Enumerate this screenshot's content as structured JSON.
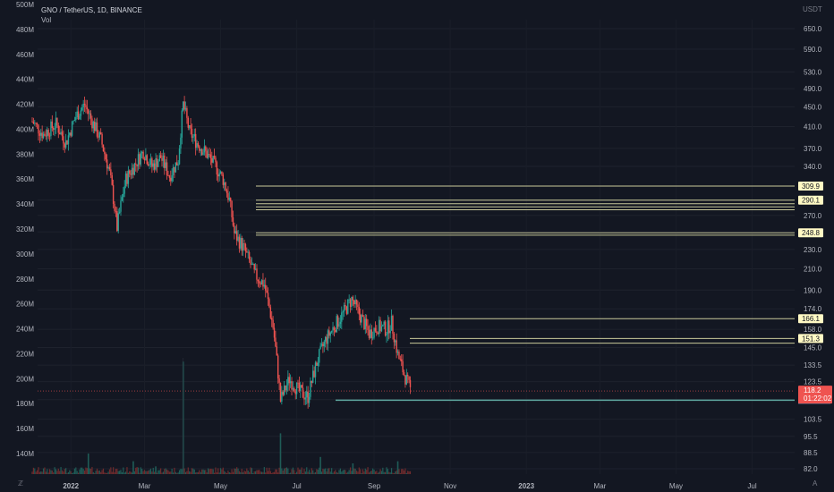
{
  "header": {
    "symbol_line": "GNO / TetherUS, 1D, BINANCE",
    "volume_label": "Vol",
    "currency": "USDT"
  },
  "corner": {
    "left_icon": "z-icon",
    "right_label": "A"
  },
  "colors": {
    "background": "#131722",
    "bull": "#26a69a",
    "bear": "#ef5350",
    "level_line": "#c8c899",
    "level_tag": "#fff9c4",
    "support_line": "#5fa8a0",
    "current_price_tag": "#ef5350",
    "support_tag": "#4fa3d8"
  },
  "chart_data": {
    "type": "candlestick",
    "symbol": "GNO / TetherUS",
    "interval": "1D",
    "exchange": "BINANCE",
    "right_axis_ticks": [
      "650.0",
      "590.0",
      "530.0",
      "490.0",
      "450.0",
      "410.0",
      "370.0",
      "340.0",
      "290.0",
      "270.0",
      "250.0",
      "230.0",
      "210.0",
      "190.0",
      "174.0",
      "158.0",
      "145.0",
      "133.5",
      "123.5",
      "113.5",
      "103.5",
      "95.5",
      "88.5",
      "82.0"
    ],
    "left_axis_ticks": [
      "500M",
      "480M",
      "460M",
      "440M",
      "420M",
      "400M",
      "380M",
      "360M",
      "340M",
      "320M",
      "300M",
      "280M",
      "260M",
      "240M",
      "220M",
      "200M",
      "180M",
      "160M",
      "140M"
    ],
    "x_axis_ticks": [
      "2022",
      "Mar",
      "May",
      "Jul",
      "Sep",
      "Nov",
      "2023",
      "Mar",
      "May",
      "Jul"
    ],
    "price_path": [
      [
        "2021-12-01",
        420
      ],
      [
        "2021-12-10",
        395
      ],
      [
        "2021-12-20",
        415
      ],
      [
        "2021-12-28",
        380
      ],
      [
        "2022-01-05",
        430
      ],
      [
        "2022-01-12",
        455
      ],
      [
        "2022-01-18",
        420
      ],
      [
        "2022-01-25",
        385
      ],
      [
        "2022-02-01",
        330
      ],
      [
        "2022-02-07",
        255
      ],
      [
        "2022-02-14",
        320
      ],
      [
        "2022-02-22",
        345
      ],
      [
        "2022-02-28",
        365
      ],
      [
        "2022-03-07",
        340
      ],
      [
        "2022-03-14",
        355
      ],
      [
        "2022-03-21",
        325
      ],
      [
        "2022-03-28",
        350
      ],
      [
        "2022-04-01",
        455
      ],
      [
        "2022-04-06",
        400
      ],
      [
        "2022-04-12",
        380
      ],
      [
        "2022-04-20",
        360
      ],
      [
        "2022-04-27",
        340
      ],
      [
        "2022-05-03",
        320
      ],
      [
        "2022-05-08",
        290
      ],
      [
        "2022-05-12",
        248
      ],
      [
        "2022-05-20",
        230
      ],
      [
        "2022-05-28",
        205
      ],
      [
        "2022-06-05",
        195
      ],
      [
        "2022-06-12",
        160
      ],
      [
        "2022-06-18",
        113
      ],
      [
        "2022-06-25",
        125
      ],
      [
        "2022-07-03",
        118
      ],
      [
        "2022-07-10",
        115
      ],
      [
        "2022-07-17",
        135
      ],
      [
        "2022-07-24",
        150
      ],
      [
        "2022-07-31",
        160
      ],
      [
        "2022-08-07",
        170
      ],
      [
        "2022-08-14",
        182
      ],
      [
        "2022-08-21",
        168
      ],
      [
        "2022-08-28",
        155
      ],
      [
        "2022-09-04",
        160
      ],
      [
        "2022-09-11",
        158
      ],
      [
        "2022-09-15",
        163
      ],
      [
        "2022-09-20",
        140
      ],
      [
        "2022-09-25",
        128
      ],
      [
        "2022-09-30",
        119
      ]
    ],
    "volume_spikes": [
      [
        "2022-01-15",
        48
      ],
      [
        "2022-02-20",
        30
      ],
      [
        "2022-03-10",
        18
      ],
      [
        "2022-04-01",
        262
      ],
      [
        "2022-06-18",
        95
      ],
      [
        "2022-07-20",
        40
      ],
      [
        "2022-08-15",
        25
      ],
      [
        "2022-09-20",
        30
      ]
    ],
    "horizontal_levels": [
      {
        "value": 309.9,
        "label": "309.9"
      },
      {
        "value": 290.1,
        "label": "290.1"
      },
      {
        "value": 285.3,
        "label": ""
      },
      {
        "value": 281.1,
        "label": ""
      },
      {
        "value": 277.2,
        "label": ""
      },
      {
        "value": 248.8,
        "label": "248.8"
      },
      {
        "value": 246.0,
        "label": ""
      },
      {
        "value": 166.1,
        "label": "166.1"
      },
      {
        "value": 151.3,
        "label": "151.3"
      },
      {
        "value": 148.0,
        "label": ""
      }
    ],
    "support_level": {
      "value": 113.2,
      "label": ""
    },
    "current_price": {
      "value": "118.2",
      "countdown": "01:22:02",
      "line_value": 118.2
    }
  }
}
